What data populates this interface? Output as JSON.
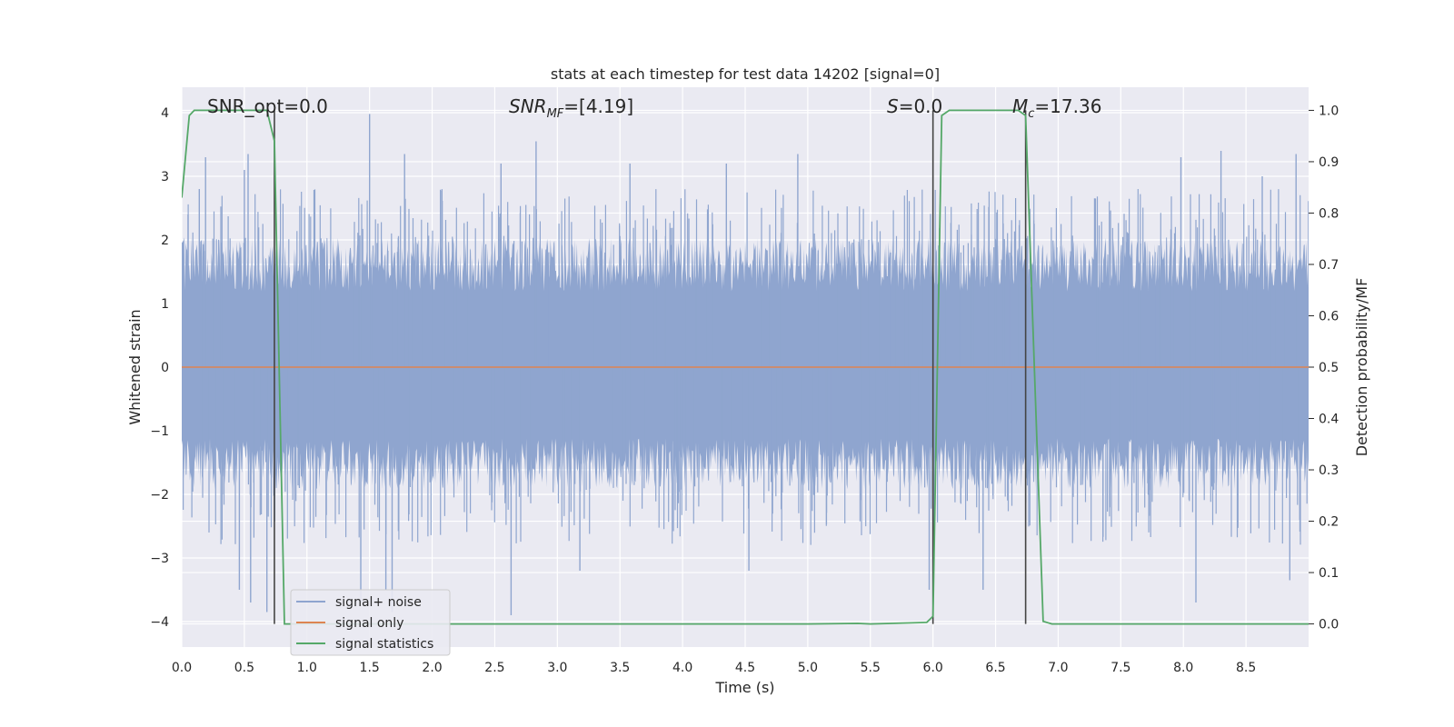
{
  "chart_data": {
    "type": "line",
    "title": "stats at each timestep for test data 14202 [signal=0]",
    "xlabel": "Time (s)",
    "ylabel": "Whitened strain",
    "y2label": "Detection probability/MF",
    "xlim": [
      0.0,
      9.0
    ],
    "ylim": [
      -4.4,
      4.4
    ],
    "y2lim": [
      -0.045,
      1.045
    ],
    "xticks": [
      "0.0",
      "0.5",
      "1.0",
      "1.5",
      "2.0",
      "2.5",
      "3.0",
      "3.5",
      "4.0",
      "4.5",
      "5.0",
      "5.5",
      "6.0",
      "6.5",
      "7.0",
      "7.5",
      "8.0",
      "8.5"
    ],
    "yticks": [
      "4",
      "3",
      "2",
      "1",
      "0",
      "−1",
      "−2",
      "−3",
      "−4"
    ],
    "y2ticks": [
      "1.0",
      "0.9",
      "0.8",
      "0.7",
      "0.6",
      "0.5",
      "0.4",
      "0.3",
      "0.2",
      "0.1",
      "0.0"
    ],
    "grid": true,
    "legend_position": "lower-left",
    "annotations": {
      "snr_opt": "SNR_opt=0.0",
      "snr_mf_main": "SNR",
      "snr_mf_sub": "MF",
      "snr_mf_rest": "=[4.19]",
      "s_main": "S",
      "s_rest": "=0.0",
      "mc_main": "M",
      "mc_sub": "c",
      "mc_rest": "=17.36"
    },
    "vertical_lines_x": [
      0.74,
      6.0,
      6.74
    ],
    "series": [
      {
        "name": "signal+ noise",
        "color": "#8fa5cf",
        "description_kind": "noise band",
        "band_typical": [
          -1.6,
          1.7
        ],
        "spike_max": 3.98,
        "spike_min": -3.9,
        "peaks": [
          {
            "x": 0.05,
            "y": 2.4
          },
          {
            "x": 0.14,
            "y": 2.8
          },
          {
            "x": 0.19,
            "y": 3.3
          },
          {
            "x": 0.5,
            "y": 3.1
          },
          {
            "x": 0.53,
            "y": 3.35
          },
          {
            "x": 1.5,
            "y": 3.98
          },
          {
            "x": 1.78,
            "y": 3.35
          },
          {
            "x": 2.55,
            "y": 3.2
          },
          {
            "x": 2.83,
            "y": 3.55
          },
          {
            "x": 3.58,
            "y": 3.2
          },
          {
            "x": 4.35,
            "y": 3.2
          },
          {
            "x": 4.92,
            "y": 3.35
          },
          {
            "x": 6.0,
            "y": 2.0
          },
          {
            "x": 7.98,
            "y": 3.3
          },
          {
            "x": 8.3,
            "y": 3.4
          },
          {
            "x": 8.63,
            "y": 3.0
          },
          {
            "x": 8.9,
            "y": 3.35
          }
        ],
        "troughs": [
          {
            "x": 0.46,
            "y": -3.5
          },
          {
            "x": 0.55,
            "y": -3.7
          },
          {
            "x": 0.68,
            "y": -3.85
          },
          {
            "x": 1.43,
            "y": -3.7
          },
          {
            "x": 1.63,
            "y": -3.5
          },
          {
            "x": 1.68,
            "y": -3.85
          },
          {
            "x": 2.63,
            "y": -3.9
          },
          {
            "x": 3.18,
            "y": -3.2
          },
          {
            "x": 4.53,
            "y": -3.2
          },
          {
            "x": 5.97,
            "y": -3.5
          },
          {
            "x": 6.4,
            "y": -3.5
          },
          {
            "x": 8.1,
            "y": -3.7
          },
          {
            "x": 8.85,
            "y": -3.35
          }
        ]
      },
      {
        "name": "signal only",
        "color": "#dd8452",
        "values_x": [
          0.0,
          9.0
        ],
        "values_y": [
          0.0,
          0.0
        ]
      },
      {
        "name": "signal statistics",
        "color": "#55a868",
        "axis": "right",
        "x": [
          0.0,
          0.06,
          0.1,
          0.2,
          0.35,
          0.5,
          0.68,
          0.74,
          0.82,
          1.0,
          2.0,
          3.0,
          4.0,
          5.0,
          5.4,
          5.5,
          5.95,
          6.0,
          6.07,
          6.13,
          6.3,
          6.5,
          6.68,
          6.74,
          6.88,
          6.95,
          7.5,
          8.0,
          8.5,
          9.0
        ],
        "y": [
          0.83,
          0.99,
          1.0,
          1.0,
          1.0,
          1.0,
          1.0,
          0.94,
          0.0,
          0.0,
          0.0,
          0.0,
          0.0,
          0.0,
          0.001,
          0.0,
          0.003,
          0.015,
          0.99,
          1.0,
          1.0,
          1.0,
          1.0,
          0.99,
          0.005,
          0.0,
          0.0,
          0.0,
          0.0,
          0.0
        ]
      }
    ]
  }
}
